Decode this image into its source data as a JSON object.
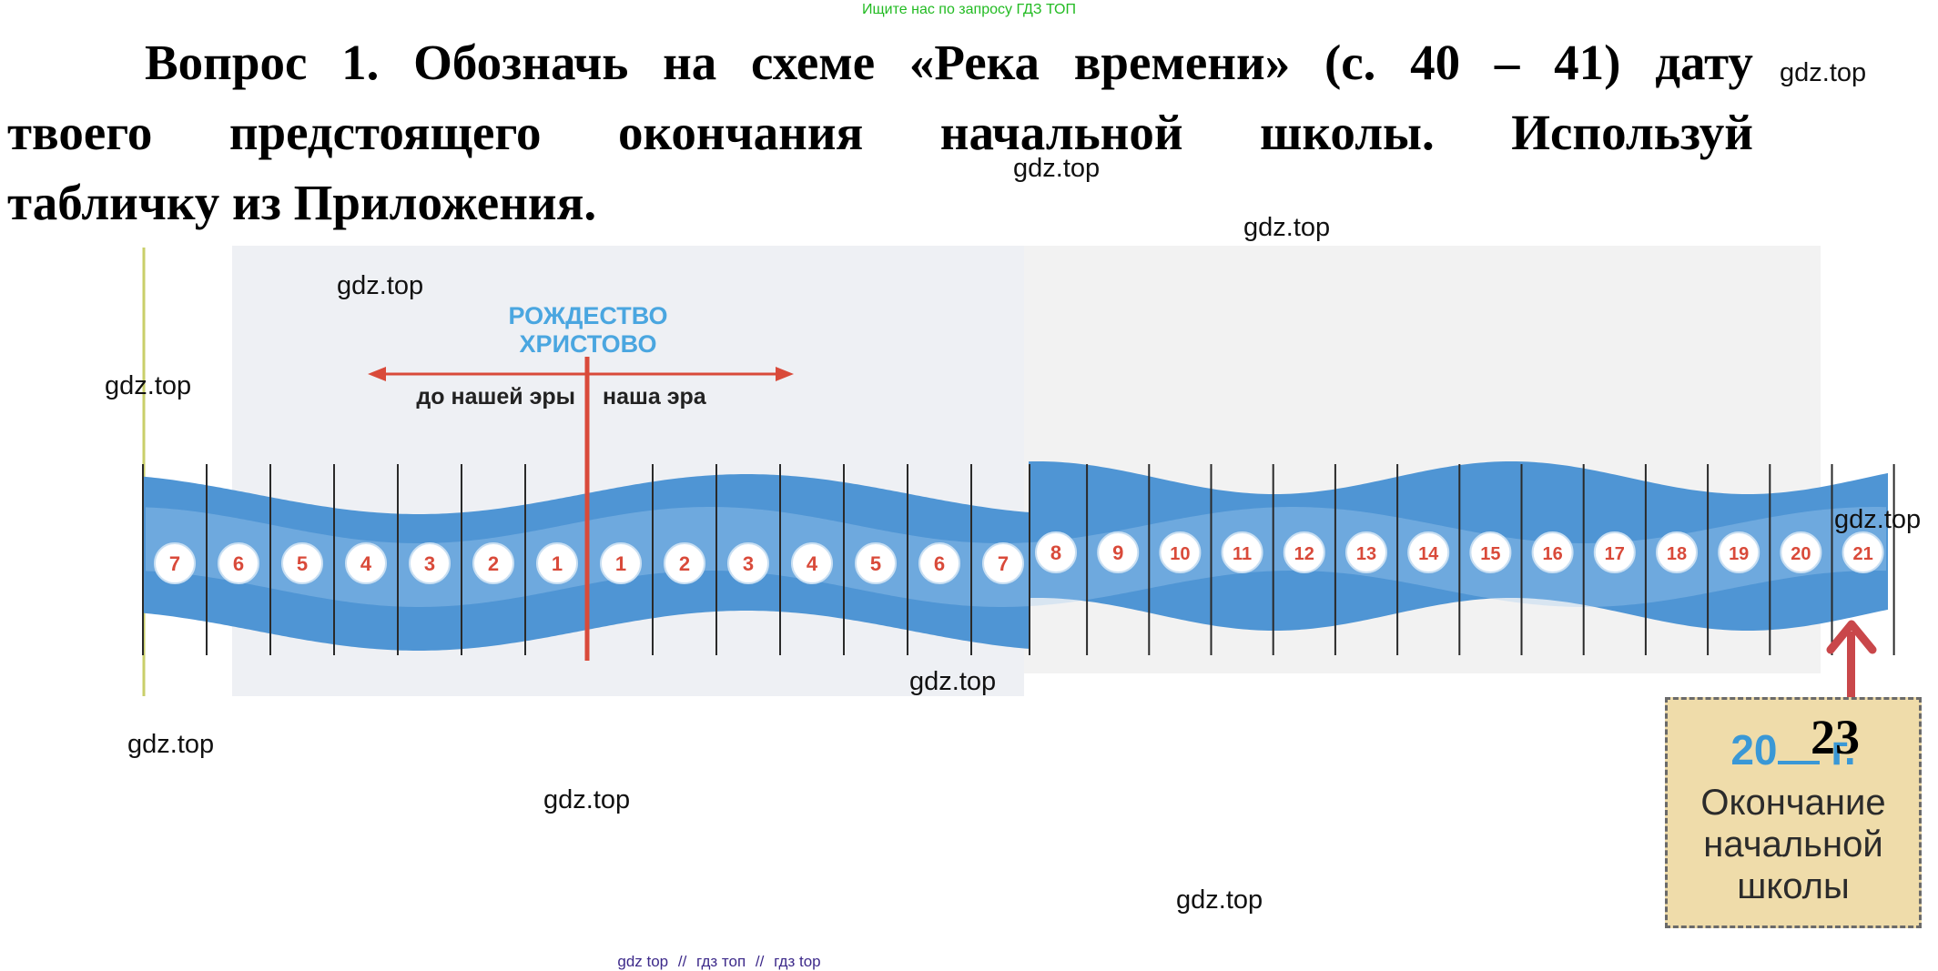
{
  "top_banner": "Ищите нас по запросу ГДЗ ТОП",
  "question": {
    "line1": [
      "Вопрос",
      "1.",
      "Обозначь",
      "на",
      "схеме",
      "«Река",
      "времени»",
      "(с.",
      "40",
      "–",
      "41)",
      "дату"
    ],
    "line2": [
      "твоего",
      "предстоящего",
      "окончания",
      "начальной",
      "школы.",
      "Используй"
    ],
    "line3": "табличку из Приложения."
  },
  "diagram": {
    "birth_label": [
      "РОЖДЕСТВО",
      "ХРИСТОВО"
    ],
    "bc_label": "до нашей эры",
    "ad_label": "наша эра",
    "bc_centuries": [
      "7",
      "6",
      "5",
      "4",
      "3",
      "2",
      "1"
    ],
    "ad_centuries": [
      "1",
      "2",
      "3",
      "4",
      "5",
      "6",
      "7",
      "8",
      "9",
      "10",
      "11",
      "12",
      "13",
      "14",
      "15",
      "16",
      "17",
      "18",
      "19",
      "20",
      "21"
    ],
    "colors": {
      "river": "#4f95d4",
      "river_light": "#a9cff0",
      "accent_red": "#d94a3a",
      "label_blue": "#4aa6e0"
    }
  },
  "card": {
    "year_prefix": "20",
    "year_filled": "23",
    "year_suffix": "г.",
    "caption": [
      "Окончание",
      "начальной",
      "школы"
    ]
  },
  "watermarks": [
    "gdz.top",
    "gdz.top",
    "gdz.top",
    "gdz.top",
    "gdz.top",
    "gdz.top",
    "gdz.top",
    "gdz.top",
    "gdz.top",
    "gdz.top"
  ],
  "bottom_links": [
    "gdz top",
    "//",
    "гдз топ",
    "//",
    "гдз top"
  ]
}
